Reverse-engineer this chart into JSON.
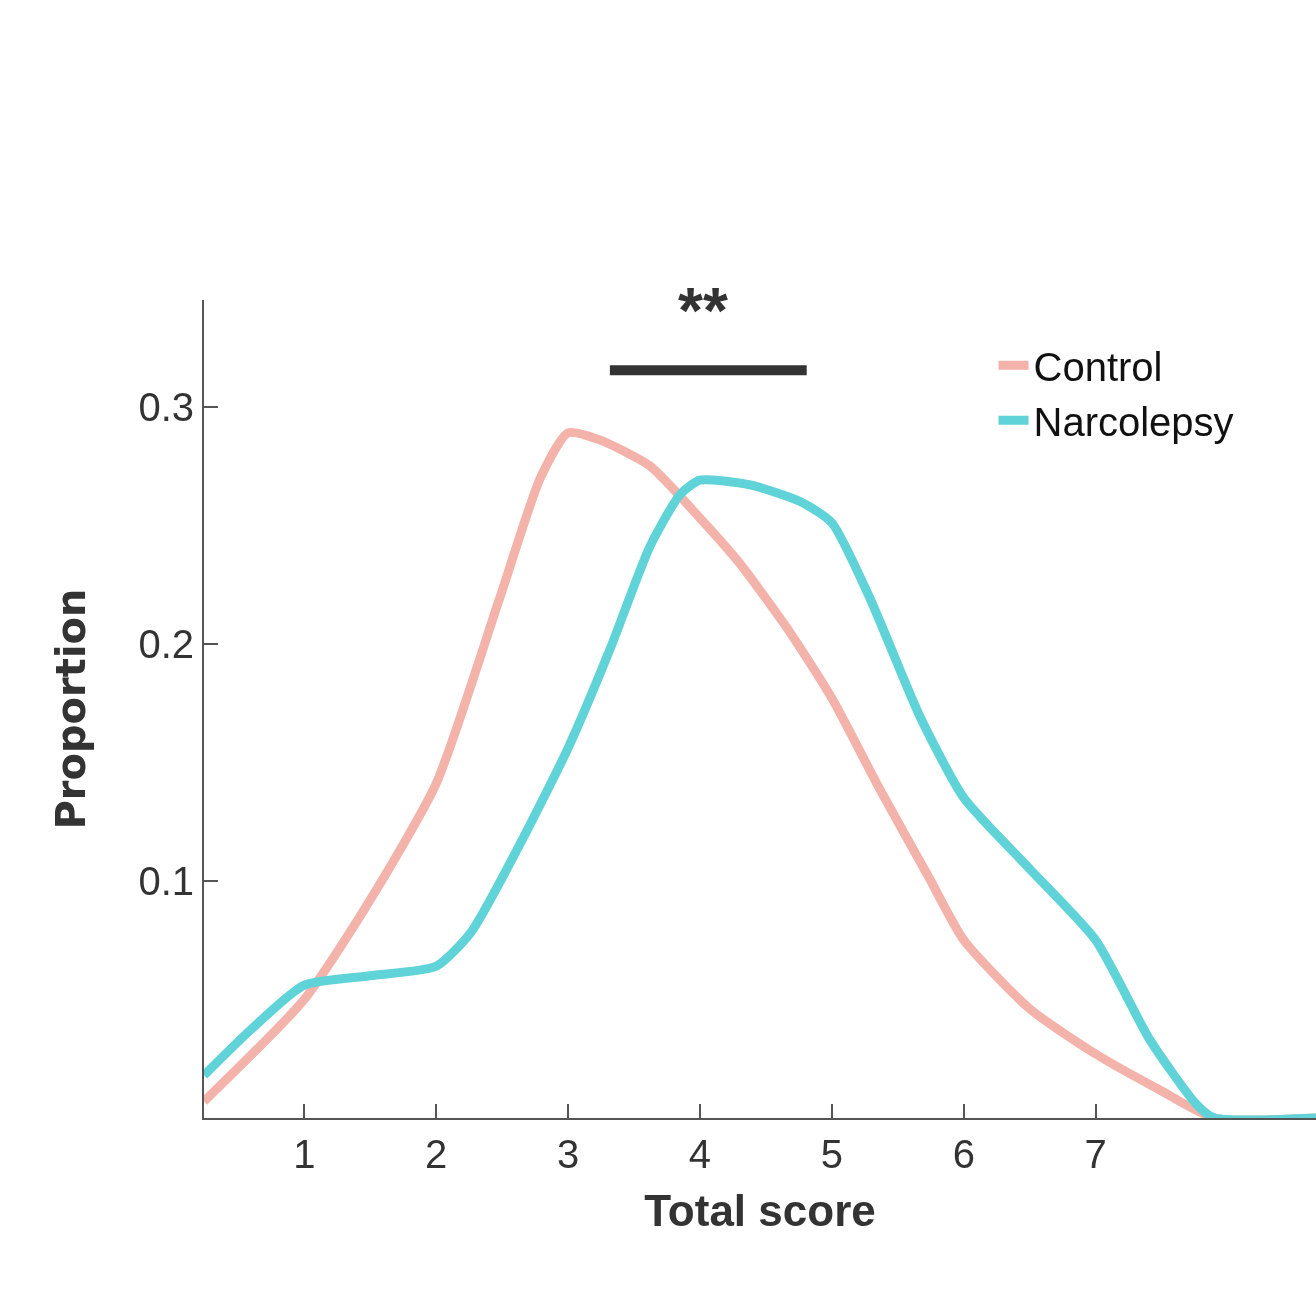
{
  "chart_data": {
    "type": "line",
    "xlabel": "Total score",
    "ylabel": "Proportion",
    "xlim": [
      0.24,
      8.67
    ],
    "ylim": [
      0,
      0.345
    ],
    "xticks": [
      1,
      2,
      3,
      4,
      5,
      6,
      7
    ],
    "yticks": [
      0.1,
      0.2,
      0.3
    ],
    "legend": "top right",
    "marker": "none",
    "line_style": "solid",
    "annotations": [
      "**"
    ],
    "series": [
      {
        "name": "Control",
        "color": "#f4b3aa",
        "x": [
          0.24,
          1.0,
          1.5,
          2.0,
          2.48,
          2.79,
          3.0,
          3.24,
          3.62,
          4.0,
          4.3,
          4.68,
          5.0,
          5.36,
          5.74,
          6.0,
          6.5,
          7.0,
          7.48,
          7.9,
          8.67
        ],
        "values": [
          0.007,
          0.05,
          0.092,
          0.141,
          0.219,
          0.27,
          0.289,
          0.286,
          0.275,
          0.253,
          0.234,
          0.205,
          0.177,
          0.139,
          0.101,
          0.075,
          0.046,
          0.027,
          0.012,
          0,
          0
        ]
      },
      {
        "name": "Narcolepsy",
        "color": "#5fd3d8",
        "x": [
          0.24,
          0.59,
          1.0,
          1.5,
          2.0,
          2.26,
          2.64,
          3.0,
          3.32,
          3.62,
          3.85,
          4.0,
          4.38,
          4.76,
          5.0,
          5.29,
          5.67,
          6.0,
          6.5,
          7.0,
          7.41,
          7.76,
          7.9,
          8.67
        ],
        "values": [
          0.018,
          0.037,
          0.056,
          0.06,
          0.064,
          0.078,
          0.116,
          0.156,
          0.198,
          0.241,
          0.263,
          0.269,
          0.267,
          0.26,
          0.251,
          0.219,
          0.169,
          0.135,
          0.105,
          0.075,
          0.033,
          0.006,
          0,
          0
        ]
      }
    ]
  }
}
